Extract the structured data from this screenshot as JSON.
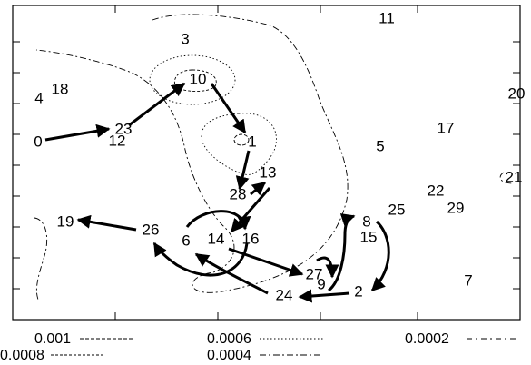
{
  "nodes": [
    {
      "id": "0",
      "label": "0"
    },
    {
      "id": "1",
      "label": "1"
    },
    {
      "id": "2",
      "label": "2"
    },
    {
      "id": "3",
      "label": "3"
    },
    {
      "id": "4",
      "label": "4"
    },
    {
      "id": "5",
      "label": "5"
    },
    {
      "id": "6",
      "label": "6"
    },
    {
      "id": "7",
      "label": "7"
    },
    {
      "id": "8",
      "label": "8"
    },
    {
      "id": "9",
      "label": "9"
    },
    {
      "id": "10",
      "label": "10"
    },
    {
      "id": "11",
      "label": "11"
    },
    {
      "id": "12",
      "label": "12"
    },
    {
      "id": "13",
      "label": "13"
    },
    {
      "id": "14",
      "label": "14"
    },
    {
      "id": "15",
      "label": "15"
    },
    {
      "id": "16",
      "label": "16"
    },
    {
      "id": "17",
      "label": "17"
    },
    {
      "id": "18",
      "label": "18"
    },
    {
      "id": "19",
      "label": "19"
    },
    {
      "id": "20",
      "label": "20"
    },
    {
      "id": "21",
      "label": "21"
    },
    {
      "id": "22",
      "label": "22"
    },
    {
      "id": "23",
      "label": "23"
    },
    {
      "id": "24",
      "label": "24"
    },
    {
      "id": "25",
      "label": "25"
    },
    {
      "id": "26",
      "label": "26"
    },
    {
      "id": "27",
      "label": "27"
    },
    {
      "id": "28",
      "label": "28"
    },
    {
      "id": "29",
      "label": "29"
    }
  ],
  "arrows": [
    {
      "from": "0",
      "to": "23"
    },
    {
      "from": "23",
      "to": "10"
    },
    {
      "from": "10",
      "to": "1"
    },
    {
      "from": "1",
      "to": "28"
    },
    {
      "from": "28",
      "to": "13"
    },
    {
      "from": "13",
      "to": "14"
    },
    {
      "from": "6",
      "to": "16"
    },
    {
      "from": "26",
      "to": "19"
    },
    {
      "from": "14",
      "to": "27"
    },
    {
      "from": "27",
      "to": "9"
    },
    {
      "from": "9",
      "to": "8"
    },
    {
      "from": "8",
      "to": "2"
    },
    {
      "from": "2",
      "to": "24"
    },
    {
      "from": "16",
      "to": "26"
    },
    {
      "from": "24",
      "to": "6"
    }
  ],
  "legend": [
    {
      "value": "0.001",
      "style": "dashed"
    },
    {
      "value": "0.0008",
      "style": "short-dashed"
    },
    {
      "value": "0.0006",
      "style": "dotted"
    },
    {
      "value": "0.0004",
      "style": "dash-dot"
    },
    {
      "value": "0.0002",
      "style": "dash-dot-loose"
    }
  ],
  "colors": {
    "ink": "#000000",
    "background": "#ffffff"
  }
}
